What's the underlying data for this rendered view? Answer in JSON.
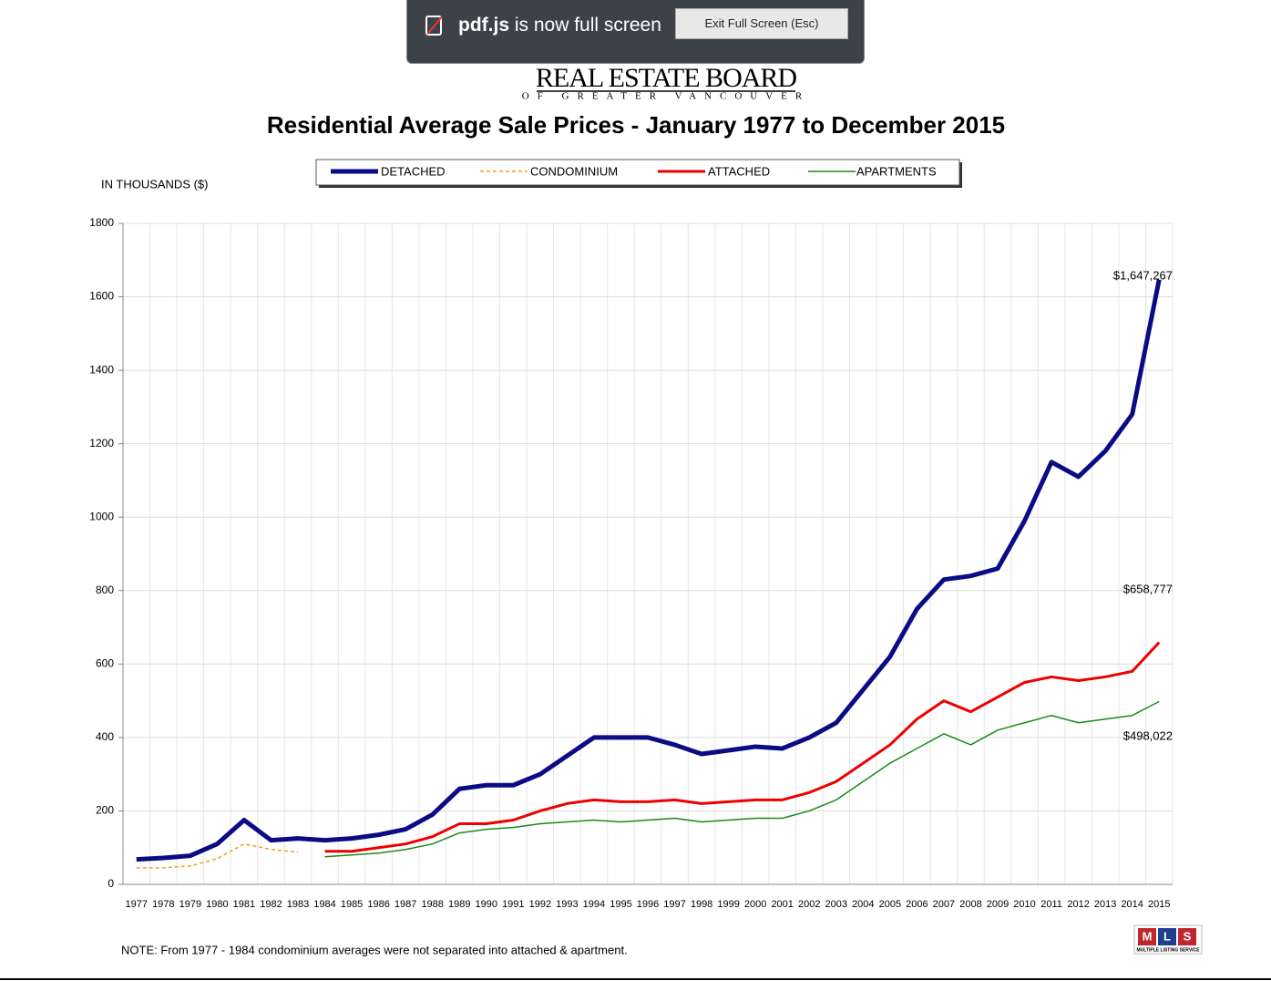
{
  "banner": {
    "app": "pdf.js",
    "message": "is now full screen",
    "button": "Exit Full Screen (Esc)"
  },
  "logo": {
    "name": "REAL ESTATE BOARD",
    "subtitle": "OF GREATER VANCOUVER"
  },
  "mls": {
    "letters": [
      "M",
      "L",
      "S"
    ],
    "caption": "MULTIPLE LISTING SERVICE"
  },
  "chart_data": {
    "type": "line",
    "title": "Residential Average Sale Prices  -  January 1977 to December 2015",
    "y_label": "IN THOUSANDS ($)",
    "note": "NOTE:  From 1977 - 1984 condominium averages were not separated into attached & apartment.",
    "annotations": [
      "$1,647,267",
      "$658,777",
      "$498,022"
    ],
    "categories": [
      "1977",
      "1978",
      "1979",
      "1980",
      "1981",
      "1982",
      "1983",
      "1984",
      "1985",
      "1986",
      "1987",
      "1988",
      "1989",
      "1990",
      "1991",
      "1992",
      "1993",
      "1994",
      "1995",
      "1996",
      "1997",
      "1998",
      "1999",
      "2000",
      "2001",
      "2002",
      "2003",
      "2004",
      "2005",
      "2006",
      "2007",
      "2008",
      "2009",
      "2010",
      "2011",
      "2012",
      "2013",
      "2014",
      "2015"
    ],
    "ylim": [
      0,
      1800
    ],
    "yticks": [
      0,
      200,
      400,
      600,
      800,
      1000,
      1200,
      1400,
      1600,
      1800
    ],
    "grid": true,
    "series": [
      {
        "name": "DETACHED",
        "color": "#0b0b86",
        "line_width": 5,
        "dashed": false,
        "values": [
          68,
          72,
          78,
          110,
          175,
          120,
          125,
          120,
          125,
          135,
          150,
          190,
          260,
          270,
          270,
          300,
          350,
          400,
          400,
          400,
          380,
          355,
          365,
          375,
          370,
          400,
          440,
          530,
          620,
          750,
          830,
          840,
          860,
          990,
          1150,
          1110,
          1180,
          1280,
          1647
        ]
      },
      {
        "name": "CONDOMINIUM",
        "color": "#f0a020",
        "line_width": 1.5,
        "dashed": true,
        "values": [
          45,
          45,
          50,
          70,
          110,
          95,
          88,
          null,
          null,
          null,
          null,
          null,
          null,
          null,
          null,
          null,
          null,
          null,
          null,
          null,
          null,
          null,
          null,
          null,
          null,
          null,
          null,
          null,
          null,
          null,
          null,
          null,
          null,
          null,
          null,
          null,
          null,
          null,
          null
        ]
      },
      {
        "name": "ATTACHED",
        "color": "#ee0000",
        "line_width": 3,
        "dashed": false,
        "values": [
          null,
          null,
          null,
          null,
          null,
          null,
          null,
          90,
          90,
          100,
          110,
          130,
          165,
          165,
          175,
          200,
          220,
          230,
          225,
          225,
          230,
          220,
          225,
          230,
          230,
          250,
          280,
          330,
          380,
          450,
          500,
          470,
          510,
          550,
          565,
          555,
          565,
          580,
          659
        ]
      },
      {
        "name": "APARTMENTS",
        "color": "#1a8a1a",
        "line_width": 1.5,
        "dashed": false,
        "values": [
          null,
          null,
          null,
          null,
          null,
          null,
          null,
          75,
          80,
          85,
          95,
          110,
          140,
          150,
          155,
          165,
          170,
          175,
          170,
          175,
          180,
          170,
          175,
          180,
          180,
          200,
          230,
          280,
          330,
          370,
          410,
          380,
          420,
          440,
          460,
          440,
          450,
          460,
          498
        ]
      }
    ]
  }
}
